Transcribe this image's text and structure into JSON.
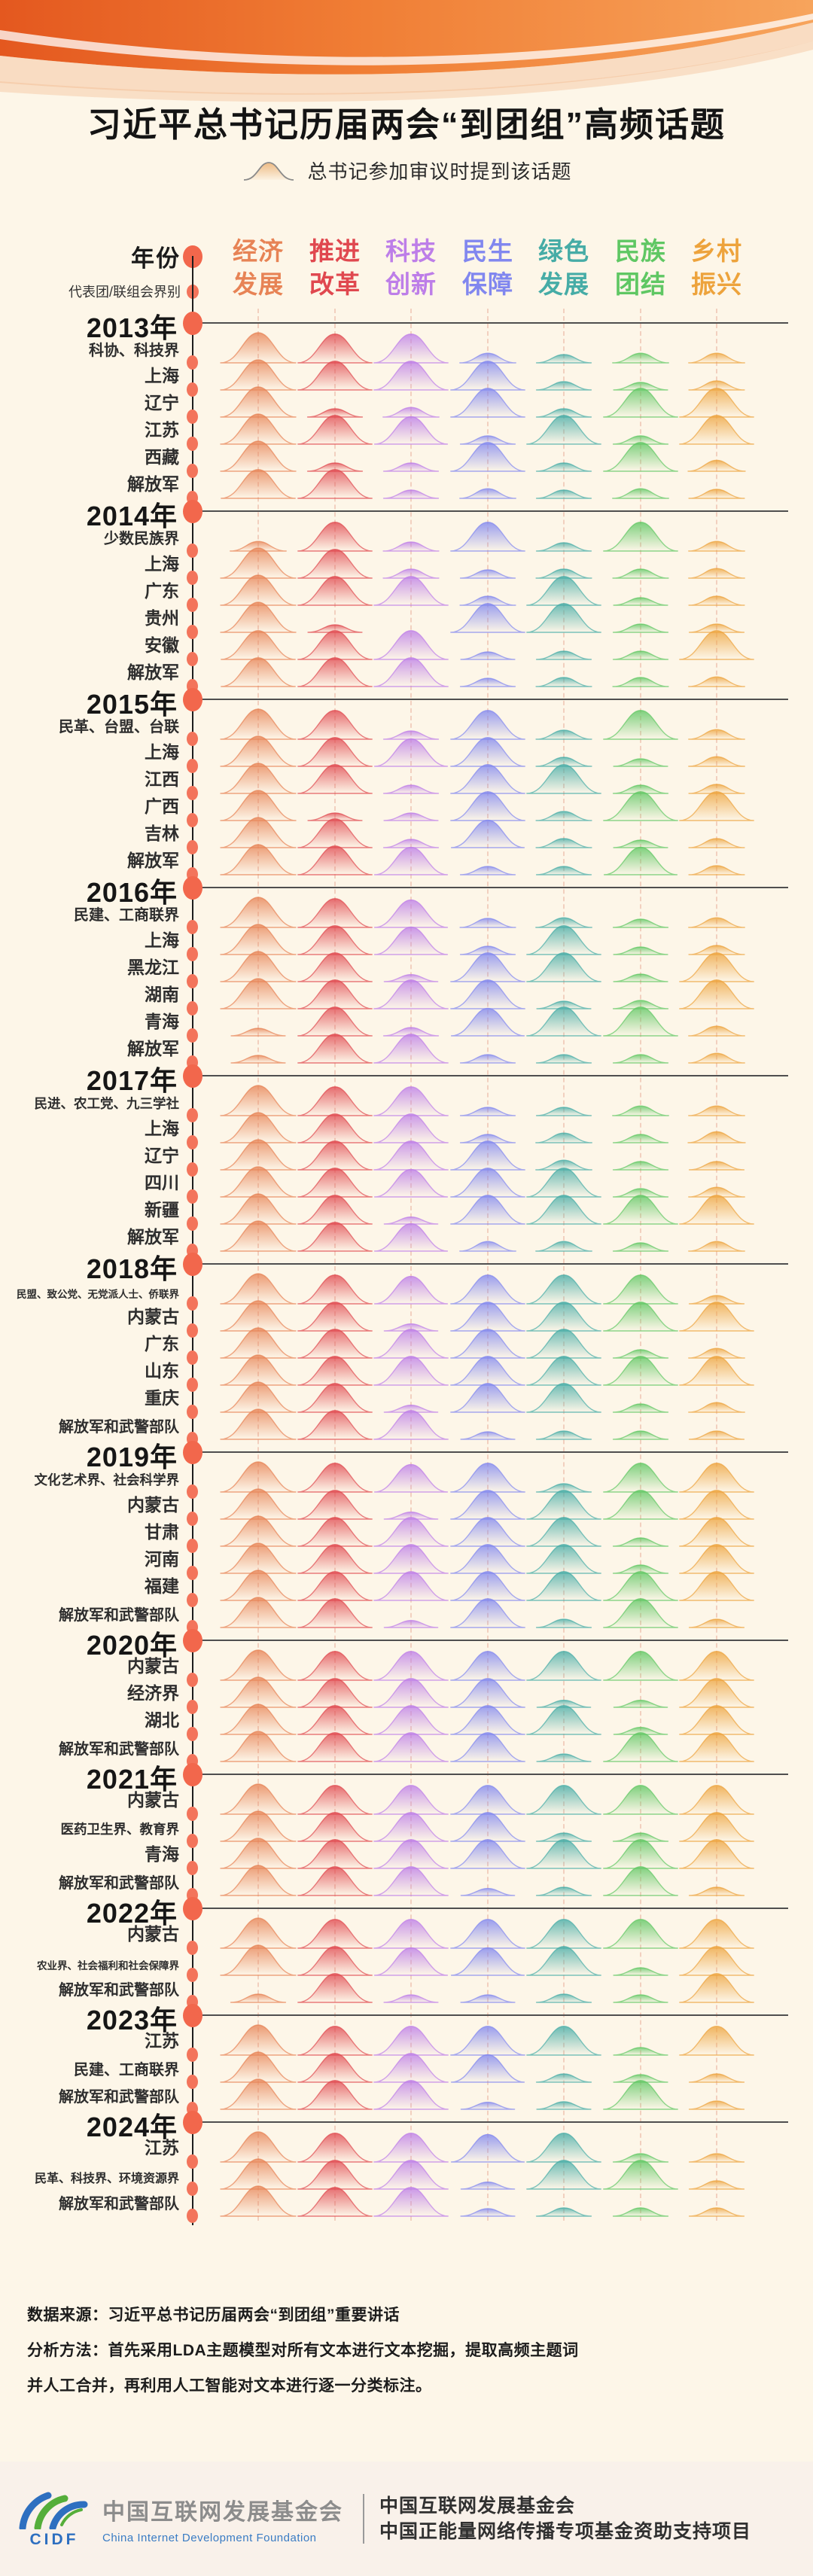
{
  "title": "习近平总书记历届两会“到团组”高频话题",
  "legend": {
    "label": "总书记参加审议时提到该话题"
  },
  "axis": {
    "year_label": "年份",
    "group_label": "代表团/联组会界别"
  },
  "topics": [
    {
      "line1": "经济",
      "line2": "发展",
      "color": "#E78355"
    },
    {
      "line1": "推进",
      "line2": "改革",
      "color": "#E0484F"
    },
    {
      "line1": "科技",
      "line2": "创新",
      "color": "#BD7EE8"
    },
    {
      "line1": "民生",
      "line2": "保障",
      "color": "#8187EF"
    },
    {
      "line1": "绿色",
      "line2": "发展",
      "color": "#46ACA6"
    },
    {
      "line1": "民族",
      "line2": "团结",
      "color": "#5FC763"
    },
    {
      "line1": "乡村",
      "line2": "振兴",
      "color": "#EDA33C"
    }
  ],
  "accent": {
    "timeline_dot": "#F2674C",
    "divider": "#4F4F4F"
  },
  "chart_data": {
    "type": "ridgeline",
    "title": "习近平总书记历届两会“到团组”高频话题",
    "columns": [
      "经济发展",
      "推进改革",
      "科技创新",
      "民生保障",
      "绿色发展",
      "民族团结",
      "乡村振兴"
    ],
    "value_scale": "relative topic intensity 0-1 (height of ridge bump)",
    "years": [
      {
        "year": "2013年",
        "rows": [
          {
            "label": "科协、科技界",
            "values": [
              1,
              0.95,
              0.95,
              0.2,
              0.15,
              0.2,
              0.2
            ]
          },
          {
            "label": "上海",
            "values": [
              1,
              0.95,
              0.95,
              0.95,
              0.15,
              0.12,
              0.18
            ]
          },
          {
            "label": "辽宁",
            "values": [
              1,
              0.15,
              0.2,
              0.95,
              0.15,
              0.95,
              0.95
            ]
          },
          {
            "label": "江苏",
            "values": [
              1,
              0.95,
              0.9,
              0.15,
              0.95,
              0.15,
              0.95
            ]
          },
          {
            "label": "西藏",
            "values": [
              1,
              0.15,
              0.15,
              0.95,
              0.15,
              0.95,
              0.25
            ]
          },
          {
            "label": "解放军",
            "values": [
              0.95,
              0.95,
              0.15,
              0.2,
              0.15,
              0.2,
              0.18
            ]
          }
        ]
      },
      {
        "year": "2014年",
        "rows": [
          {
            "label": "少数民族界",
            "values": [
              0.2,
              0.95,
              0.18,
              0.95,
              0.15,
              0.95,
              0.2
            ]
          },
          {
            "label": "上海",
            "values": [
              1,
              0.95,
              0.18,
              0.15,
              0.18,
              0.18,
              0.2
            ]
          },
          {
            "label": "广东",
            "values": [
              1,
              0.95,
              0.95,
              0.18,
              0.95,
              0.12,
              0.18
            ]
          },
          {
            "label": "贵州",
            "values": [
              1,
              0.12,
              0,
              0.95,
              0.95,
              0.15,
              0.15
            ]
          },
          {
            "label": "安徽",
            "values": [
              0.95,
              0.95,
              0.95,
              0.12,
              0.15,
              0.15,
              0.95
            ]
          },
          {
            "label": "解放军",
            "values": [
              0.95,
              0.95,
              0.95,
              0.15,
              0.18,
              0.18,
              0.2
            ]
          }
        ]
      },
      {
        "year": "2015年",
        "rows": [
          {
            "label": "民革、台盟、台联",
            "values": [
              1,
              0.95,
              0.15,
              0.95,
              0.18,
              0.95,
              0.2
            ]
          },
          {
            "label": "上海",
            "values": [
              1,
              0.95,
              0.9,
              0.95,
              0.18,
              0.12,
              0.2
            ]
          },
          {
            "label": "江西",
            "values": [
              1,
              0.95,
              0.15,
              0.95,
              0.95,
              0.15,
              0.18
            ]
          },
          {
            "label": "广西",
            "values": [
              1,
              0.12,
              0.12,
              0.95,
              0.18,
              0.95,
              0.95
            ]
          },
          {
            "label": "吉林",
            "values": [
              1,
              0.95,
              0.15,
              0.9,
              0.18,
              0.12,
              0.18
            ]
          },
          {
            "label": "解放军",
            "values": [
              1,
              0.95,
              0.9,
              0.15,
              0.15,
              0.9,
              0.18
            ]
          }
        ]
      },
      {
        "year": "2016年",
        "rows": [
          {
            "label": "民建、工商联界",
            "values": [
              1,
              0.95,
              0.9,
              0.18,
              0.2,
              0.15,
              0.2
            ]
          },
          {
            "label": "上海",
            "values": [
              1,
              0.95,
              0.9,
              0.15,
              0.95,
              0.12,
              0.18
            ]
          },
          {
            "label": "黑龙江",
            "values": [
              1,
              0.95,
              0.1,
              0.95,
              0.95,
              0.12,
              0.95
            ]
          },
          {
            "label": "湖南",
            "values": [
              1,
              0.95,
              0.95,
              0.95,
              0.12,
              0.15,
              0.95
            ]
          },
          {
            "label": "青海",
            "values": [
              0.12,
              0.95,
              0.15,
              0.9,
              0.95,
              0.95,
              0.2
            ]
          },
          {
            "label": "解放军",
            "values": [
              0.12,
              0.95,
              0.95,
              0.15,
              0.15,
              0.15,
              0.2
            ]
          }
        ]
      },
      {
        "year": "2017年",
        "rows": [
          {
            "label": "民进、农工党、九三学社",
            "values": [
              1,
              0.95,
              0.95,
              0.15,
              0.15,
              0.2,
              0.2
            ]
          },
          {
            "label": "上海",
            "values": [
              1,
              0.95,
              0.95,
              0.15,
              0.2,
              0.15,
              0.25
            ]
          },
          {
            "label": "辽宁",
            "values": [
              1,
              0.95,
              0.95,
              0.95,
              0.2,
              0.15,
              0.15
            ]
          },
          {
            "label": "四川",
            "values": [
              1,
              0.95,
              0.9,
              0.95,
              0.95,
              0.15,
              0.2
            ]
          },
          {
            "label": "新疆",
            "values": [
              1,
              0.95,
              0.1,
              0.95,
              0.95,
              0.95,
              0.95
            ]
          },
          {
            "label": "解放军",
            "values": [
              1,
              0.95,
              0.9,
              0.2,
              0.2,
              0.15,
              0.2
            ]
          }
        ]
      },
      {
        "year": "2018年",
        "rows": [
          {
            "label": "民盟、致公党、无党派人士、侨联界",
            "values": [
              1,
              0.95,
              0.9,
              0.95,
              0.95,
              0.95,
              0.15
            ]
          },
          {
            "label": "内蒙古",
            "values": [
              1,
              0.95,
              0.1,
              0.95,
              0.95,
              0.95,
              0.95
            ]
          },
          {
            "label": "广东",
            "values": [
              1,
              0.95,
              0.95,
              0.95,
              0.95,
              0.15,
              0.2
            ]
          },
          {
            "label": "山东",
            "values": [
              1,
              0.95,
              0.95,
              0.95,
              0.95,
              0.95,
              0.95
            ]
          },
          {
            "label": "重庆",
            "values": [
              1,
              0.95,
              0.1,
              0.95,
              0.95,
              0.15,
              0.2
            ]
          },
          {
            "label": "解放军和武警部队",
            "values": [
              1,
              0.95,
              0.95,
              0.12,
              0.15,
              0.15,
              0.15
            ]
          }
        ]
      },
      {
        "year": "2019年",
        "rows": [
          {
            "label": "文化艺术界、社会科学界",
            "values": [
              1,
              0.95,
              0.9,
              0.95,
              0.15,
              0.95,
              0.95
            ]
          },
          {
            "label": "内蒙古",
            "values": [
              1,
              0.95,
              0.1,
              0.95,
              0.95,
              0.95,
              0.95
            ]
          },
          {
            "label": "甘肃",
            "values": [
              1,
              0.95,
              0.95,
              0.95,
              0.95,
              0.15,
              0.95
            ]
          },
          {
            "label": "河南",
            "values": [
              1,
              0.95,
              0.95,
              0.95,
              0.95,
              0.15,
              0.95
            ]
          },
          {
            "label": "福建",
            "values": [
              1,
              0.95,
              0.95,
              0.95,
              0.95,
              0.95,
              0.95
            ]
          },
          {
            "label": "解放军和武警部队",
            "values": [
              1,
              0.95,
              0.1,
              0.95,
              0.15,
              0.95,
              0.15
            ]
          }
        ]
      },
      {
        "year": "2020年",
        "rows": [
          {
            "label": "内蒙古",
            "values": [
              1,
              0.95,
              0.95,
              0.95,
              0.95,
              0.95,
              0.95
            ]
          },
          {
            "label": "经济界",
            "values": [
              1,
              0.95,
              0.95,
              0.95,
              0.1,
              0.1,
              0.95
            ]
          },
          {
            "label": "湖北",
            "values": [
              1,
              0.95,
              0.95,
              0.95,
              0.95,
              0.1,
              0.95
            ]
          },
          {
            "label": "解放军和武警部队",
            "values": [
              1,
              0.95,
              0.95,
              0.95,
              0.12,
              0.95,
              0.95
            ]
          }
        ]
      },
      {
        "year": "2021年",
        "rows": [
          {
            "label": "内蒙古",
            "values": [
              1,
              0.95,
              0.95,
              0.95,
              0.95,
              0.95,
              0.95
            ]
          },
          {
            "label": "医药卫生界、教育界",
            "values": [
              1,
              0.95,
              0.95,
              0.95,
              0.15,
              0.15,
              0.95
            ]
          },
          {
            "label": "青海",
            "values": [
              1,
              0.95,
              0.95,
              0.95,
              0.95,
              0.95,
              0.95
            ]
          },
          {
            "label": "解放军和武警部队",
            "values": [
              1,
              0.95,
              0.95,
              0.1,
              0.15,
              0.95,
              0.15
            ]
          }
        ]
      },
      {
        "year": "2022年",
        "rows": [
          {
            "label": "内蒙古",
            "values": [
              1,
              0.95,
              0.95,
              0.95,
              0.95,
              0.95,
              0.95
            ]
          },
          {
            "label": "农业界、社会福利和社会保障界",
            "values": [
              1,
              0.95,
              0.9,
              0.9,
              0.95,
              0.12,
              0.95
            ]
          },
          {
            "label": "解放军和武警部队",
            "values": [
              0.15,
              0.95,
              0.12,
              0.12,
              0.15,
              0.12,
              0.95
            ]
          }
        ]
      },
      {
        "year": "2023年",
        "rows": [
          {
            "label": "江苏",
            "values": [
              1,
              0.95,
              0.95,
              0.95,
              0.95,
              0.12,
              0.95
            ]
          },
          {
            "label": "民建、工商联界",
            "values": [
              1,
              0.95,
              0.95,
              0.9,
              0.15,
              0.12,
              0.15
            ]
          },
          {
            "label": "解放军和武警部队",
            "values": [
              1,
              0.95,
              0.95,
              0.1,
              0.12,
              0.95,
              0.15
            ]
          }
        ]
      },
      {
        "year": "2024年",
        "rows": [
          {
            "label": "江苏",
            "values": [
              1,
              0.95,
              0.95,
              0.9,
              0.95,
              0.15,
              0.15
            ]
          },
          {
            "label": "民革、科技界、环境资源界",
            "values": [
              1,
              0.95,
              0.95,
              0.1,
              0.95,
              0.95,
              0.15
            ]
          },
          {
            "label": "解放军和武警部队",
            "values": [
              1,
              0.95,
              0.95,
              0.12,
              0.15,
              0.15,
              0.15
            ]
          }
        ]
      }
    ]
  },
  "footer": {
    "source_line": "数据来源：习近平总书记历届两会“到团组”重要讲话",
    "method_line1": "分析方法：首先采用LDA主题模型对所有文本进行文本挖掘，提取高频主题词",
    "method_line2": "并人工合并，再利用人工智能对文本进行逐一分类标注。"
  },
  "footer_bar": {
    "acronym": "CIDF",
    "org_cn": "中国互联网发展基金会",
    "org_en": "China Internet Development Foundation",
    "right_lines": [
      "中国互联网发展基金会",
      "中国正能量网络传播专项基金资助支持项目"
    ]
  }
}
